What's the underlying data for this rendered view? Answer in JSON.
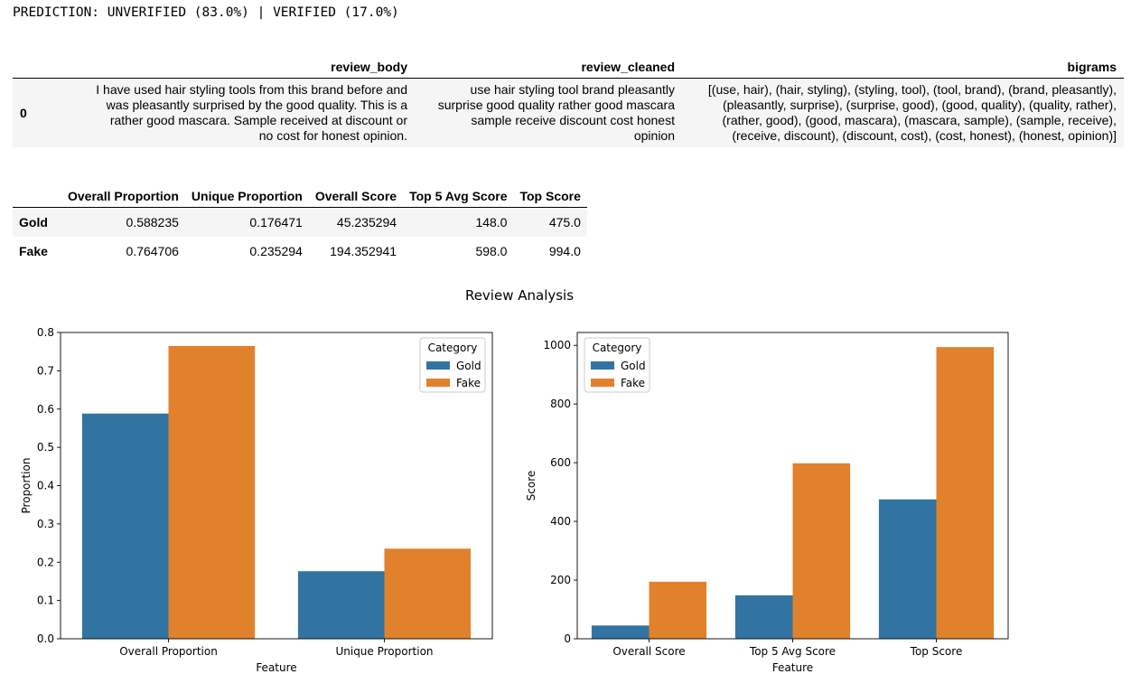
{
  "prediction_text": "PREDICTION: UNVERIFIED (83.0%) | VERIFIED (17.0%)",
  "review_table": {
    "columns": [
      "review_body",
      "review_cleaned",
      "bigrams"
    ],
    "rows": [
      {
        "index": "0",
        "review_body": [
          "I have used hair styling tools from this brand before and",
          "was pleasantly surprised by the good quality. This is a",
          "rather good mascara. Sample received at discount or",
          "no cost for honest opinion."
        ],
        "review_cleaned": [
          "use hair styling tool brand pleasantly",
          "surprise good quality rather good mascara",
          "sample receive discount cost honest",
          "opinion"
        ],
        "bigrams": [
          "[(use, hair), (hair, styling), (styling, tool), (tool, brand), (brand, pleasantly),",
          "(pleasantly, surprise), (surprise, good), (good, quality), (quality, rather),",
          "(rather, good), (good, mascara), (mascara, sample), (sample, receive),",
          "(receive, discount), (discount, cost), (cost, honest), (honest, opinion)]"
        ]
      }
    ]
  },
  "stats_table": {
    "columns": [
      "Overall Proportion",
      "Unique Proportion",
      "Overall Score",
      "Top 5 Avg Score",
      "Top Score"
    ],
    "rows": [
      {
        "label": "Gold",
        "values": [
          "0.588235",
          "0.176471",
          "45.235294",
          "148.0",
          "475.0"
        ]
      },
      {
        "label": "Fake",
        "values": [
          "0.764706",
          "0.235294",
          "194.352941",
          "598.0",
          "994.0"
        ]
      }
    ]
  },
  "figure_title": "Review Analysis",
  "chart_data": [
    {
      "type": "bar",
      "categories": [
        "Overall Proportion",
        "Unique Proportion"
      ],
      "series": [
        {
          "name": "Gold",
          "values": [
            0.588235,
            0.176471
          ]
        },
        {
          "name": "Fake",
          "values": [
            0.764706,
            0.235294
          ]
        }
      ],
      "xlabel": "Feature",
      "ylabel": "Proportion",
      "ylim": [
        0,
        0.8
      ],
      "yticks": [
        "0.0",
        "0.1",
        "0.2",
        "0.3",
        "0.4",
        "0.5",
        "0.6",
        "0.7",
        "0.8"
      ],
      "legend_title": "Category",
      "legend_position": "top-right",
      "grid": false
    },
    {
      "type": "bar",
      "categories": [
        "Overall Score",
        "Top 5 Avg Score",
        "Top Score"
      ],
      "series": [
        {
          "name": "Gold",
          "values": [
            45.235294,
            148.0,
            475.0
          ]
        },
        {
          "name": "Fake",
          "values": [
            194.352941,
            598.0,
            994.0
          ]
        }
      ],
      "xlabel": "Feature",
      "ylabel": "Score",
      "ylim": [
        0,
        1043.7
      ],
      "yticks": [
        "0",
        "200",
        "400",
        "600",
        "800",
        "1000"
      ],
      "legend_title": "Category",
      "legend_position": "top-left",
      "grid": false
    }
  ],
  "colors": {
    "gold": "#3274a1",
    "fake": "#e1812c",
    "row_stripe": "#f5f5f5"
  }
}
